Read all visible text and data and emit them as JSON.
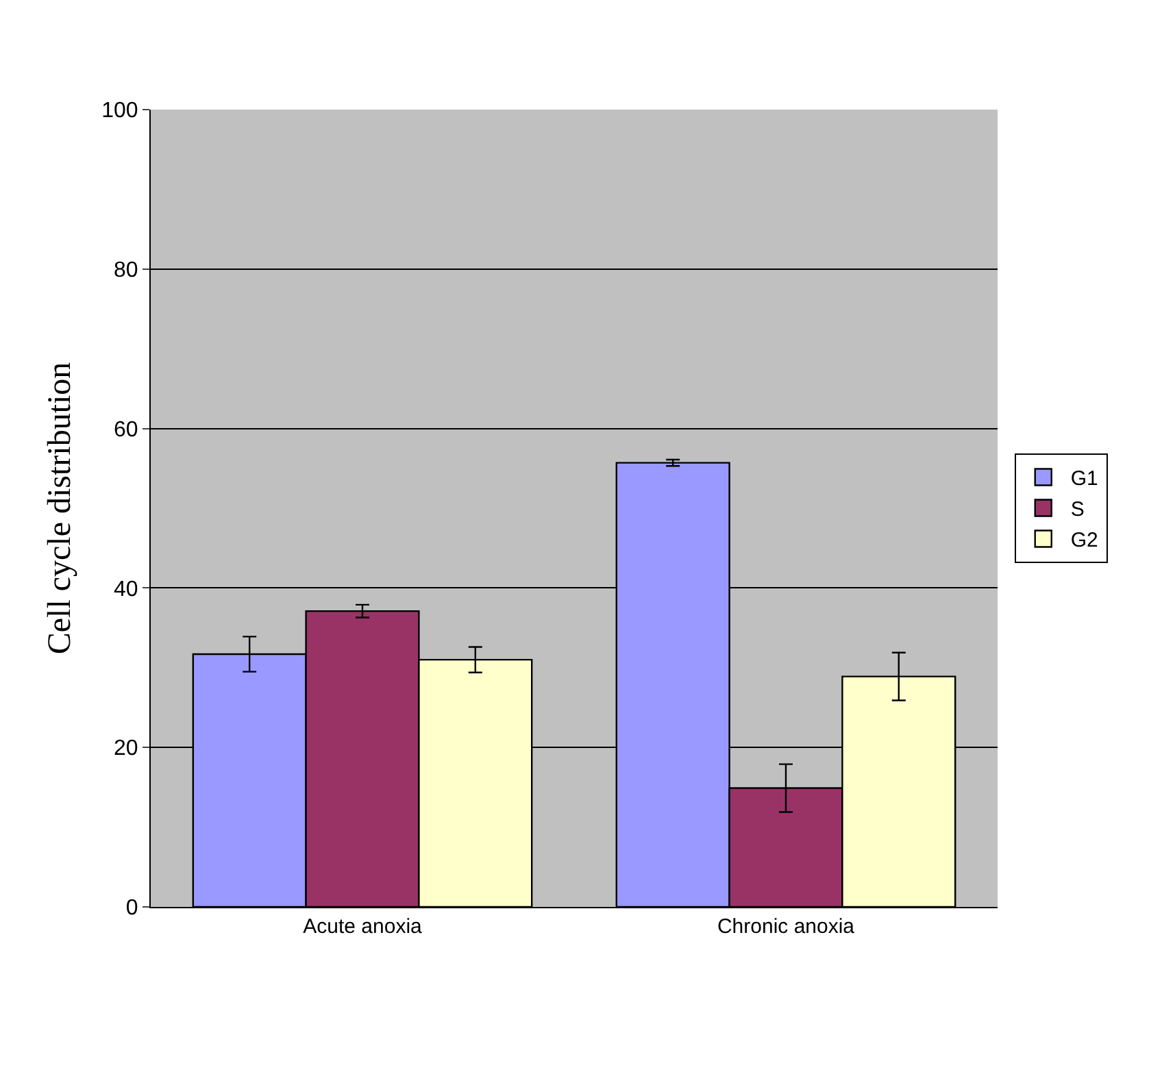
{
  "chart_data": {
    "type": "bar",
    "ylabel": "Cell cycle distribution",
    "categories": [
      "Acute anoxia",
      "Chronic anoxia"
    ],
    "series": [
      {
        "name": "G1",
        "color": "#9999ff",
        "values": [
          31.7,
          55.7
        ],
        "errors": [
          2.2,
          0.4
        ]
      },
      {
        "name": "S",
        "color": "#993366",
        "values": [
          37.1,
          14.9
        ],
        "errors": [
          0.8,
          3.0
        ]
      },
      {
        "name": "G2",
        "color": "#ffffcc",
        "values": [
          31.0,
          28.9
        ],
        "errors": [
          1.6,
          3.0
        ]
      }
    ],
    "ylim": [
      0,
      100
    ],
    "yticks": [
      0,
      20,
      40,
      60,
      80,
      100
    ],
    "grid": "y",
    "legend": "right"
  }
}
